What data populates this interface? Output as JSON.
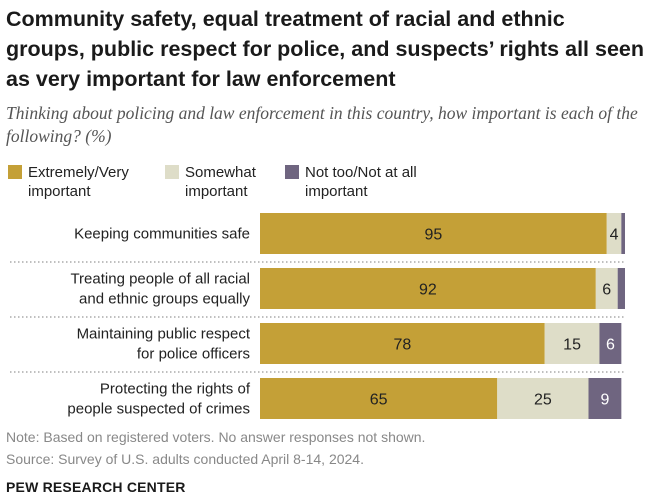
{
  "title": "Community safety, equal treatment of racial and ethnic groups, public respect for police, and suspects’ rights all seen as very important for law enforcement",
  "subtitle": "Thinking about policing and law enforcement in this country, how important is each of the following? (%)",
  "note": "Note: Based on registered voters. No answer responses not shown.",
  "source": "Source: Survey of U.S. adults conducted April 8-14, 2024.",
  "brand": "PEW RESEARCH CENTER",
  "colors": {
    "very": "#c4a037",
    "somewhat": "#deddc8",
    "not": "#6f6580",
    "divider": "#999999"
  },
  "chart_data": {
    "type": "bar",
    "orientation": "horizontal",
    "stacked": true,
    "xlim": [
      0,
      100
    ],
    "categories": [
      [
        "Keeping communities safe"
      ],
      [
        "Treating people of  all racial",
        "and ethnic groups equally"
      ],
      [
        "Maintaining public respect",
        "for police officers"
      ],
      [
        "Protecting the rights of",
        "people suspected of crimes"
      ]
    ],
    "series": [
      {
        "name": "Extremely/Very important",
        "legend_lines": [
          "Extremely/Very",
          "important"
        ],
        "color": "#c4a037",
        "values": [
          95,
          92,
          78,
          65
        ]
      },
      {
        "name": "Somewhat important",
        "legend_lines": [
          "Somewhat",
          "important"
        ],
        "color": "#deddc8",
        "values": [
          4,
          6,
          15,
          25
        ]
      },
      {
        "name": "Not too/Not at all important",
        "legend_lines": [
          "Not too/Not at all",
          "important"
        ],
        "color": "#6f6580",
        "values": [
          1,
          2,
          6,
          9
        ]
      }
    ],
    "data_labels": [
      [
        "95",
        "4",
        ""
      ],
      [
        "92",
        "6",
        ""
      ],
      [
        "78",
        "15",
        "6"
      ],
      [
        "65",
        "25",
        "9"
      ]
    ],
    "legend": "top",
    "grid": false
  }
}
